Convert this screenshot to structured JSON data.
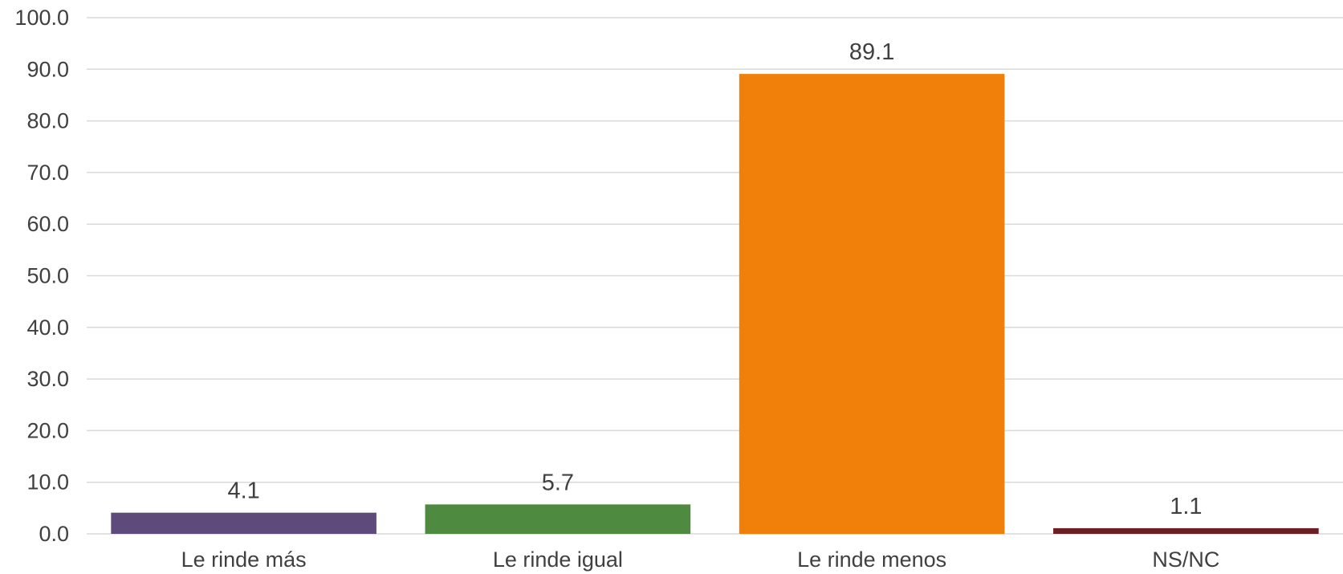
{
  "chart_data": {
    "type": "bar",
    "categories": [
      "Le rinde más",
      "Le rinde igual",
      "Le rinde menos",
      "NS/NC"
    ],
    "values": [
      4.1,
      5.7,
      89.1,
      1.1
    ],
    "value_labels": [
      "4.1",
      "5.7",
      "89.1",
      "1.1"
    ],
    "bar_colors": [
      "#5f4b7b",
      "#4e8a3f",
      "#f0800a",
      "#6b1e24"
    ],
    "ylim": [
      0,
      100
    ],
    "yticks": [
      0,
      10,
      20,
      30,
      40,
      50,
      60,
      70,
      80,
      90,
      100
    ],
    "ytick_labels": [
      "0.0",
      "10.0",
      "20.0",
      "30.0",
      "40.0",
      "50.0",
      "60.0",
      "70.0",
      "80.0",
      "90.0",
      "100.0"
    ],
    "grid": true,
    "legend": "none",
    "title": "",
    "xlabel": "",
    "ylabel": ""
  }
}
